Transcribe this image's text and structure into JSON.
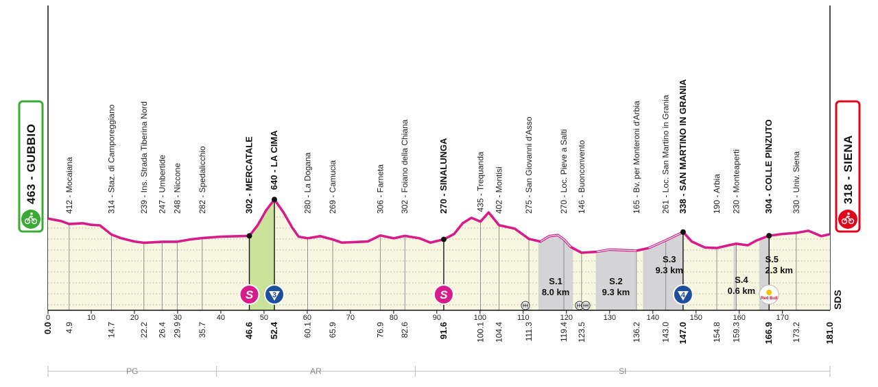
{
  "colors": {
    "profile": "#d81b8a",
    "fill": "#f7f7e1",
    "gravel": "#d4d4d6",
    "climb": "#c9e39a",
    "start_green": "#3aa935",
    "finish_red": "#e3001b"
  },
  "start": {
    "text": "463 - GUBBIO",
    "icon": "bike-icon"
  },
  "finish": {
    "text": "318 - SIENA",
    "icon": "bike-icon"
  },
  "elevation_ticks": [
    "400",
    "200",
    "0"
  ],
  "axis_logo": "SDS",
  "chart_data": {
    "type": "area",
    "x_range": [
      0,
      181
    ],
    "x_ticks": [
      0,
      10,
      20,
      30,
      40,
      50,
      60,
      70,
      80,
      90,
      100,
      110,
      120,
      130,
      140,
      150,
      160,
      170
    ],
    "profile": [
      [
        0,
        463
      ],
      [
        3,
        440
      ],
      [
        4.9,
        412
      ],
      [
        8,
        420
      ],
      [
        10,
        405
      ],
      [
        12,
        400
      ],
      [
        14.7,
        314
      ],
      [
        17,
        280
      ],
      [
        20,
        250
      ],
      [
        22.2,
        239
      ],
      [
        26.4,
        247
      ],
      [
        29.9,
        248
      ],
      [
        33,
        270
      ],
      [
        35.7,
        282
      ],
      [
        40,
        295
      ],
      [
        44,
        300
      ],
      [
        46.6,
        302
      ],
      [
        48.5,
        400
      ],
      [
        50.5,
        540
      ],
      [
        52.4,
        640
      ],
      [
        54.5,
        520
      ],
      [
        56.5,
        380
      ],
      [
        58,
        295
      ],
      [
        60.1,
        280
      ],
      [
        63,
        300
      ],
      [
        65.9,
        269
      ],
      [
        68,
        240
      ],
      [
        71,
        245
      ],
      [
        74,
        250
      ],
      [
        76.9,
        306
      ],
      [
        80,
        280
      ],
      [
        82.6,
        302
      ],
      [
        86,
        280
      ],
      [
        88.5,
        240
      ],
      [
        91.6,
        270
      ],
      [
        94,
        320
      ],
      [
        96,
        420
      ],
      [
        98,
        470
      ],
      [
        100.1,
        435
      ],
      [
        102,
        520
      ],
      [
        104.4,
        402
      ],
      [
        108,
        370
      ],
      [
        111.3,
        275
      ],
      [
        114,
        250
      ],
      [
        116,
        300
      ],
      [
        118,
        310
      ],
      [
        119.4,
        270
      ],
      [
        121,
        200
      ],
      [
        123.5,
        146
      ],
      [
        127,
        155
      ],
      [
        130,
        175
      ],
      [
        133,
        170
      ],
      [
        136.2,
        165
      ],
      [
        139,
        190
      ],
      [
        143.0,
        261
      ],
      [
        145,
        300
      ],
      [
        147.0,
        338
      ],
      [
        149,
        250
      ],
      [
        152,
        195
      ],
      [
        154.8,
        190
      ],
      [
        157,
        210
      ],
      [
        159.3,
        230
      ],
      [
        162,
        215
      ],
      [
        164,
        260
      ],
      [
        166.9,
        304
      ],
      [
        170,
        320
      ],
      [
        173.2,
        330
      ],
      [
        176,
        350
      ],
      [
        179,
        300
      ],
      [
        181,
        318
      ]
    ],
    "km_labels": [
      {
        "km": 0.0,
        "text": "0.0",
        "bold": true
      },
      {
        "km": 4.9,
        "text": "4.9"
      },
      {
        "km": 14.7,
        "text": "14.7"
      },
      {
        "km": 22.2,
        "text": "22.2"
      },
      {
        "km": 26.4,
        "text": "26.4"
      },
      {
        "km": 29.9,
        "text": "29.9"
      },
      {
        "km": 35.7,
        "text": "35.7"
      },
      {
        "km": 46.6,
        "text": "46.6",
        "bold": true
      },
      {
        "km": 52.4,
        "text": "52.4",
        "bold": true
      },
      {
        "km": 60.1,
        "text": "60.1"
      },
      {
        "km": 65.9,
        "text": "65.9"
      },
      {
        "km": 76.9,
        "text": "76.9"
      },
      {
        "km": 82.6,
        "text": "82.6"
      },
      {
        "km": 91.6,
        "text": "91.6",
        "bold": true
      },
      {
        "km": 100.1,
        "text": "100.1"
      },
      {
        "km": 104.4,
        "text": "104.4"
      },
      {
        "km": 111.3,
        "text": "111.3"
      },
      {
        "km": 119.4,
        "text": "119.4"
      },
      {
        "km": 123.5,
        "text": "123.5"
      },
      {
        "km": 136.2,
        "text": "136.2"
      },
      {
        "km": 143.0,
        "text": "143.0"
      },
      {
        "km": 147.0,
        "text": "147.0",
        "bold": true
      },
      {
        "km": 154.8,
        "text": "154.8"
      },
      {
        "km": 159.3,
        "text": "159.3"
      },
      {
        "km": 166.9,
        "text": "166.9",
        "bold": true
      },
      {
        "km": 173.2,
        "text": "173.2"
      },
      {
        "km": 181.0,
        "text": "181.0",
        "bold": true
      }
    ],
    "places": [
      {
        "km": 4.9,
        "text": "412 - Mocaiana"
      },
      {
        "km": 14.7,
        "text": "314 - Staz. di Camporeggiano"
      },
      {
        "km": 22.2,
        "text": "239 - Ins. Strada Tiberina Nord"
      },
      {
        "km": 26.4,
        "text": "247 - Umbertide"
      },
      {
        "km": 29.9,
        "text": "248 - Niccone"
      },
      {
        "km": 35.7,
        "text": "282 - Spedalicchio"
      },
      {
        "km": 46.6,
        "text": "302 - MERCATALE",
        "bold": true
      },
      {
        "km": 52.4,
        "text": "640 - LA CIMA",
        "bold": true
      },
      {
        "km": 60.1,
        "text": "280 - La Dogana"
      },
      {
        "km": 65.9,
        "text": "269 - Camucia"
      },
      {
        "km": 76.9,
        "text": "306 - Farneta"
      },
      {
        "km": 82.6,
        "text": "302 - Foiano della Chiana"
      },
      {
        "km": 91.6,
        "text": "270 - SINALUNGA",
        "bold": true
      },
      {
        "km": 100.1,
        "text": "435 - Trequanda"
      },
      {
        "km": 104.4,
        "text": "402 - Montisi"
      },
      {
        "km": 111.3,
        "text": "275 - San Giovanni d'Asso"
      },
      {
        "km": 119.4,
        "text": "270 - Loc. Pieve a Salti"
      },
      {
        "km": 123.5,
        "text": "146 - Buonconvento"
      },
      {
        "km": 136.2,
        "text": "165 - Bv. per Monteroni d'Arbia"
      },
      {
        "km": 143.0,
        "text": "261 - Loc. San Martino in Grania"
      },
      {
        "km": 147.0,
        "text": "338 - SAN MARTINO IN GRANIA",
        "bold": true
      },
      {
        "km": 154.8,
        "text": "190 - Arbia"
      },
      {
        "km": 159.3,
        "text": "230 - Monteaperti"
      },
      {
        "km": 166.9,
        "text": "304 - COLLE PINZUTO",
        "bold": true
      },
      {
        "km": 173.2,
        "text": "330 - Univ. Siena"
      }
    ],
    "gravel_sectors": [
      {
        "from": 113.5,
        "to": 121.5,
        "line1": "S.1",
        "line2": "8.0 km"
      },
      {
        "from": 126.8,
        "to": 136.1,
        "line1": "S.2",
        "line2": "9.3 km"
      },
      {
        "from": 137.7,
        "to": 147.0,
        "line1": "S.3",
        "line2": "9.3 km"
      },
      {
        "from": 158.7,
        "to": 159.3,
        "line1": "S.4",
        "line2": "0.6 km"
      },
      {
        "from": 164.6,
        "to": 166.9,
        "line1": "S.5",
        "line2": "2.3 km"
      }
    ],
    "climb": {
      "from": 46.6,
      "to": 52.4,
      "category": "3"
    },
    "sprints": [
      {
        "km": 46.6,
        "letter": "S"
      },
      {
        "km": 91.6,
        "letter": "S"
      }
    ],
    "kom": [
      {
        "km": 52.4,
        "category": "3"
      },
      {
        "km": 147.0,
        "category": "4"
      }
    ],
    "sponsor": {
      "km": 166.9,
      "text": "Red Bull"
    },
    "markers": [
      {
        "km": 46.6,
        "elev": 302
      },
      {
        "km": 52.4,
        "elev": 640
      },
      {
        "km": 91.6,
        "elev": 270
      },
      {
        "km": 147.0,
        "elev": 338
      },
      {
        "km": 166.9,
        "elev": 304
      }
    ],
    "feed_zones": [
      110.5,
      123.0,
      124.5
    ],
    "regions": [
      {
        "from": 0,
        "to": 39,
        "text": "PG"
      },
      {
        "from": 39,
        "to": 85,
        "text": "AR"
      },
      {
        "from": 85,
        "to": 181,
        "text": "SI"
      }
    ]
  }
}
